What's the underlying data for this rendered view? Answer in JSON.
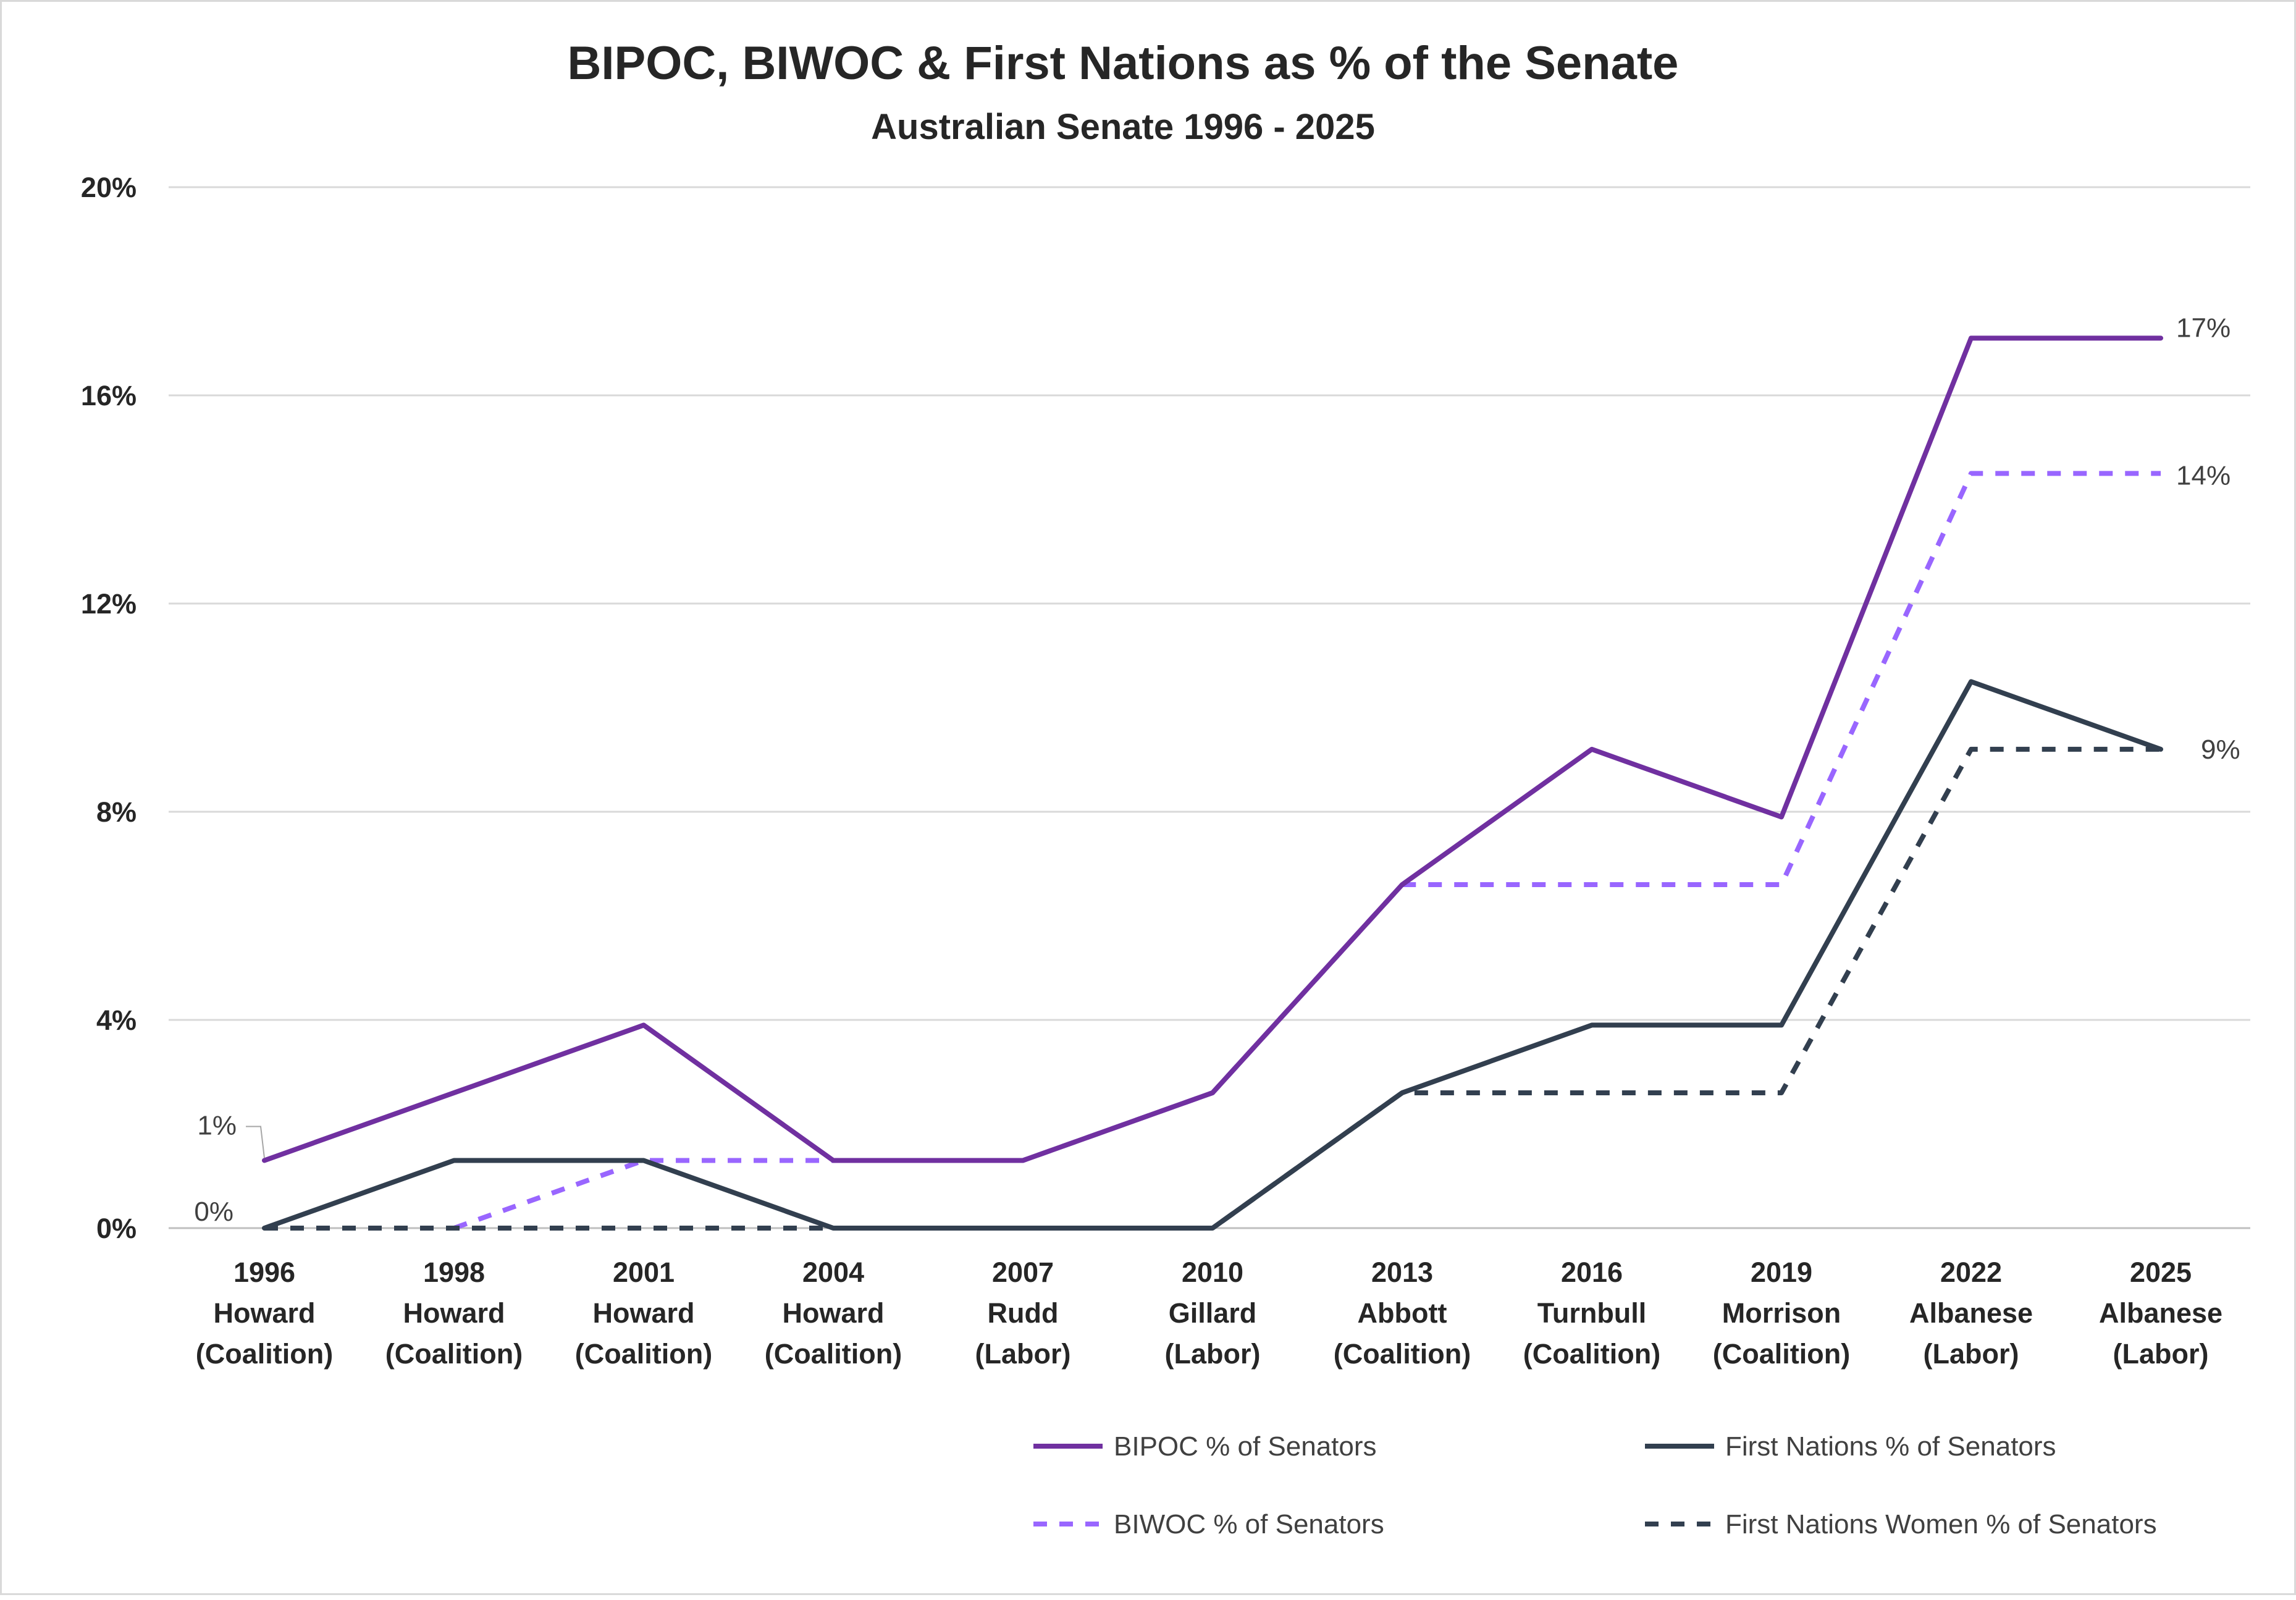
{
  "chart_data": {
    "type": "line",
    "title": "BIPOC, BIWOC & First Nations as % of the Senate",
    "subtitle": "Australian Senate 1996 - 2025",
    "categories": [
      [
        "1996",
        "Howard",
        "(Coalition)"
      ],
      [
        "1998",
        "Howard",
        "(Coalition)"
      ],
      [
        "2001",
        "Howard",
        "(Coalition)"
      ],
      [
        "2004",
        "Howard",
        "(Coalition)"
      ],
      [
        "2007",
        "Rudd",
        "(Labor)"
      ],
      [
        "2010",
        "Gillard",
        "(Labor)"
      ],
      [
        "2013",
        "Abbott",
        "(Coalition)"
      ],
      [
        "2016",
        "Turnbull",
        "(Coalition)"
      ],
      [
        "2019",
        "Morrison",
        "(Coalition)"
      ],
      [
        "2022",
        "Albanese",
        "(Labor)"
      ],
      [
        "2025",
        "Albanese",
        "(Labor)"
      ]
    ],
    "ylim": [
      0,
      20
    ],
    "yticks": [
      "0%",
      "4%",
      "8%",
      "12%",
      "16%",
      "20%"
    ],
    "grid": true,
    "legend_position": "bottom-right",
    "series": [
      {
        "name": "BIPOC % of Senators",
        "color": "#7030a0",
        "dash": false,
        "values": [
          1.3,
          2.6,
          3.9,
          1.3,
          1.3,
          2.6,
          6.6,
          9.2,
          7.9,
          17.1,
          17.1
        ]
      },
      {
        "name": "First Nations % of Senators",
        "color": "#323f4f",
        "dash": false,
        "values": [
          0,
          1.3,
          1.3,
          0,
          0,
          0,
          2.6,
          3.9,
          3.9,
          10.5,
          9.2
        ]
      },
      {
        "name": "BIWOC % of Senators",
        "color": "#9966ff",
        "dash": true,
        "values": [
          null,
          0,
          1.3,
          1.3,
          1.3,
          2.6,
          6.6,
          6.6,
          6.6,
          14.5,
          14.5
        ]
      },
      {
        "name": "First Nations Women % of Senators",
        "color": "#323f4f",
        "dash": true,
        "values": [
          0,
          0,
          0,
          0,
          0,
          0,
          2.6,
          2.6,
          2.6,
          9.2,
          9.2
        ]
      }
    ],
    "data_labels": [
      {
        "text": "1%",
        "series": 0,
        "point": 0
      },
      {
        "text": "0%",
        "series": 1,
        "point": 0
      },
      {
        "text": "17%",
        "series": 0,
        "point": 10
      },
      {
        "text": "14%",
        "series": 2,
        "point": 10
      },
      {
        "text": "9%",
        "series": 3,
        "point": 10
      }
    ]
  }
}
